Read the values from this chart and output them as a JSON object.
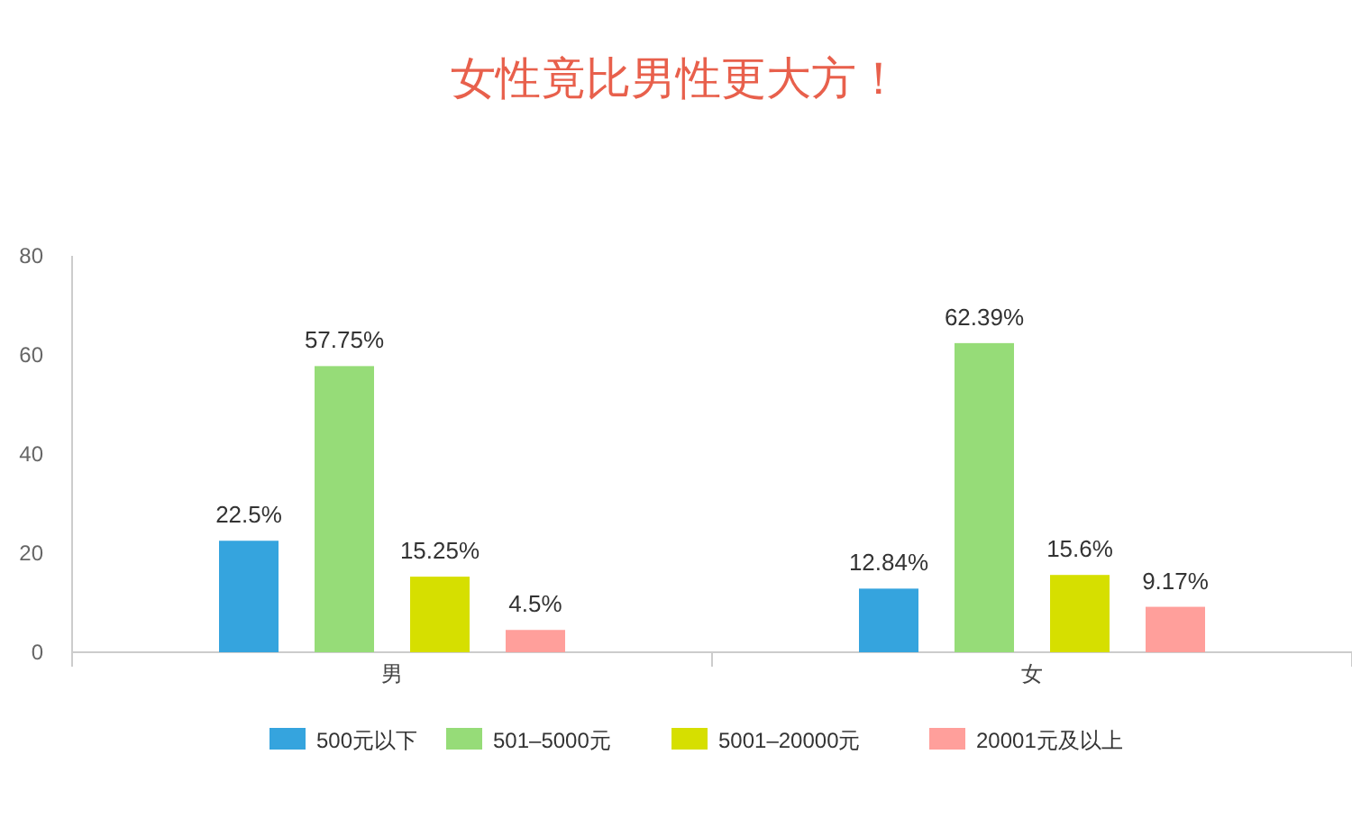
{
  "chart_data": {
    "type": "bar",
    "title": "女性竟比男性更大方！",
    "categories": [
      "男",
      "女"
    ],
    "series": [
      {
        "name": "500元以下",
        "color": "#35a4de",
        "values": [
          22.5,
          12.84
        ],
        "value_labels": [
          "22.5%",
          "12.84%"
        ]
      },
      {
        "name": "501–5000元",
        "color": "#96dc78",
        "values": [
          57.75,
          62.39
        ],
        "value_labels": [
          "57.75%",
          "62.39%"
        ]
      },
      {
        "name": "5001–20000元",
        "color": "#d6df00",
        "values": [
          15.25,
          15.6
        ],
        "value_labels": [
          "15.25%",
          "15.6%"
        ]
      },
      {
        "name": "20001元及以上",
        "color": "#ff9f9b",
        "values": [
          4.5,
          9.17
        ],
        "value_labels": [
          "4.5%",
          "9.17%"
        ]
      }
    ],
    "ylim": [
      0,
      80
    ],
    "yticks": [
      0,
      20,
      40,
      60,
      80
    ],
    "grid": false,
    "legend": "bottom"
  }
}
